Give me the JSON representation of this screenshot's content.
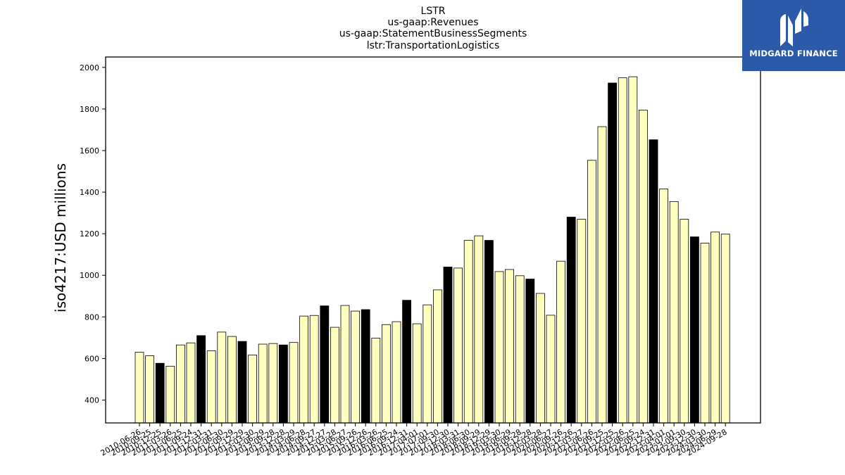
{
  "logo": {
    "text": "MIDGARD FINANCE",
    "color": "#2d5aa8"
  },
  "chart_data": {
    "type": "bar",
    "title_lines": [
      "LSTR",
      "us-gaap:Revenues",
      "us-gaap:StatementBusinessSegments",
      "lstr:TransportationLogistics"
    ],
    "ylabel": "iso4217:USD  millions",
    "xlabel": "",
    "ylim": [
      290,
      2050
    ],
    "yticks": [
      400,
      600,
      800,
      1000,
      1200,
      1400,
      1600,
      1800,
      2000
    ],
    "grid": false,
    "colors": {
      "quarter": "#ffffc0",
      "annual": "#000000",
      "edge": "#000000"
    },
    "categories": [
      "2010-06-26",
      "2010-09-25",
      "2010-12-25",
      "2011-03-26",
      "2011-06-25",
      "2011-09-24",
      "2011-12-31",
      "2012-03-31",
      "2012-06-30",
      "2012-09-29",
      "2012-12-29",
      "2013-03-30",
      "2013-06-29",
      "2013-09-28",
      "2013-12-28",
      "2014-03-29",
      "2014-06-28",
      "2014-09-27",
      "2014-12-27",
      "2015-03-28",
      "2015-06-27",
      "2015-09-26",
      "2015-12-26",
      "2016-03-26",
      "2016-06-25",
      "2016-09-24",
      "2016-12-31",
      "2017-04-01",
      "2017-07-01",
      "2017-09-30",
      "2017-12-30",
      "2018-03-31",
      "2018-06-30",
      "2018-09-29",
      "2018-12-29",
      "2019-03-30",
      "2019-06-29",
      "2019-09-28",
      "2019-12-28",
      "2020-03-28",
      "2020-06-27",
      "2020-09-26",
      "2020-12-26",
      "2021-03-27",
      "2021-06-26",
      "2021-09-25",
      "2021-12-25",
      "2022-03-26",
      "2022-06-25",
      "2022-09-24",
      "2022-12-31",
      "2023-04-01",
      "2023-07-01",
      "2023-09-30",
      "2023-12-30",
      "2024-03-30",
      "2024-06-29",
      "2024-09-28"
    ],
    "values": [
      630,
      613,
      577,
      563,
      665,
      675,
      710,
      637,
      727,
      706,
      682,
      617,
      669,
      672,
      665,
      677,
      804,
      807,
      853,
      750,
      855,
      828,
      835,
      698,
      763,
      777,
      880,
      767,
      858,
      930,
      1040,
      1035,
      1168,
      1190,
      1168,
      1018,
      1028,
      998,
      982,
      913,
      808,
      1068,
      1280,
      1270,
      1553,
      1715,
      1925,
      1950,
      1955,
      1795,
      1652,
      1415,
      1355,
      1270,
      1185,
      1155,
      1208,
      1198
    ],
    "annual": [
      false,
      false,
      true,
      false,
      false,
      false,
      true,
      false,
      false,
      false,
      true,
      false,
      false,
      false,
      true,
      false,
      false,
      false,
      true,
      false,
      false,
      false,
      true,
      false,
      false,
      false,
      true,
      false,
      false,
      false,
      true,
      false,
      false,
      false,
      true,
      false,
      false,
      false,
      true,
      false,
      false,
      false,
      true,
      false,
      false,
      false,
      true,
      false,
      false,
      false,
      true,
      false,
      false,
      false,
      true,
      false,
      false,
      false
    ]
  }
}
